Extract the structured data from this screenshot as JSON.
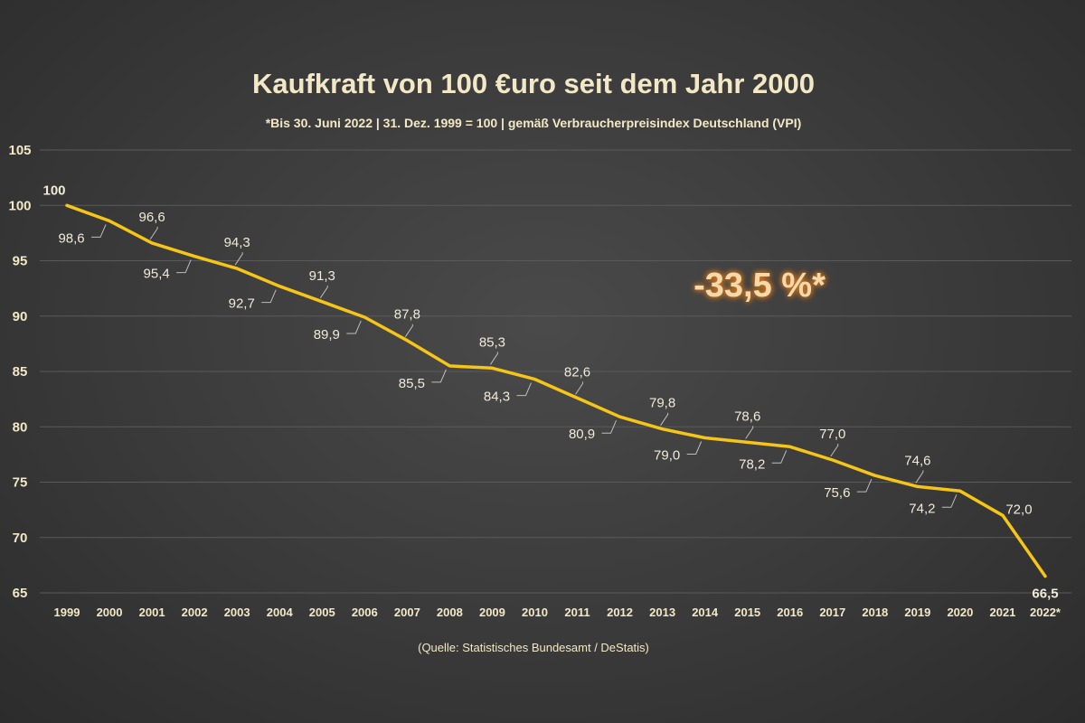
{
  "chart_data": {
    "type": "line",
    "title": "Kaufkraft von 100 €uro seit dem Jahr 2000",
    "subtitle": "*Bis 30. Juni 2022 | 31. Dez. 1999 = 100 | gemäß Verbraucherpreisindex Deutschland (VPI)",
    "source": "(Quelle: Statistisches Bundesamt / DeStatis)",
    "callout": "-33,5 %*",
    "x": [
      "1999",
      "2000",
      "2001",
      "2002",
      "2003",
      "2004",
      "2005",
      "2006",
      "2007",
      "2008",
      "2009",
      "2010",
      "2011",
      "2012",
      "2013",
      "2014",
      "2015",
      "2016",
      "2017",
      "2018",
      "2019",
      "2020",
      "2021",
      "2022*"
    ],
    "values": [
      100,
      98.6,
      96.6,
      95.4,
      94.3,
      92.7,
      91.3,
      89.9,
      87.8,
      85.5,
      85.3,
      84.3,
      82.6,
      80.9,
      79.8,
      79.0,
      78.6,
      78.2,
      77.0,
      75.6,
      74.6,
      74.2,
      72.0,
      66.5
    ],
    "labels": [
      "100",
      "98,6",
      "96,6",
      "95,4",
      "94,3",
      "92,7",
      "91,3",
      "89,9",
      "87,8",
      "85,5",
      "85,3",
      "84,3",
      "82,6",
      "80,9",
      "79,8",
      "79,0",
      "78,6",
      "78,2",
      "77,0",
      "75,6",
      "74,6",
      "74,2",
      "72,0",
      "66,5"
    ],
    "ylim": [
      65,
      105
    ],
    "yticks": [
      "65",
      "70",
      "75",
      "80",
      "85",
      "90",
      "95",
      "100",
      "105"
    ],
    "grid": true,
    "colors": {
      "line": "#f5c518",
      "start_label": "#a6d189",
      "end_label": "#f4a0a0",
      "callout": "#f7d9a8",
      "callout_glow": "#e07b1f"
    }
  }
}
